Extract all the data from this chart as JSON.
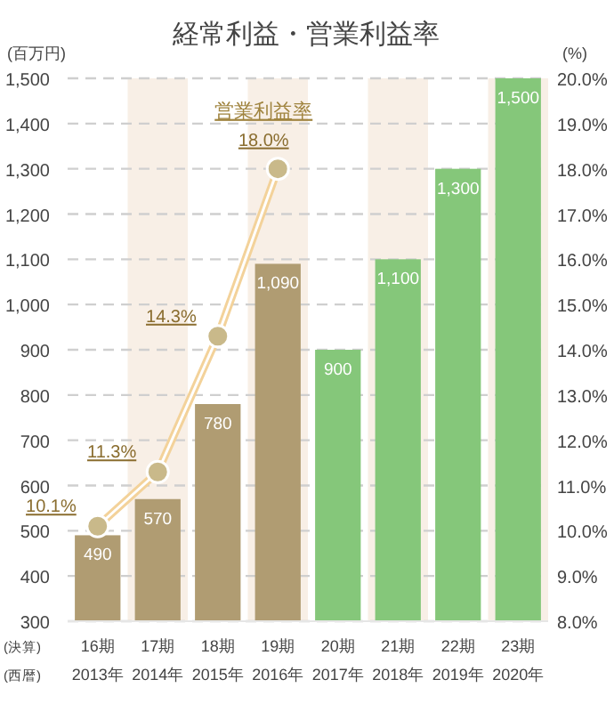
{
  "chart_data": {
    "type": "bar",
    "title": "経常利益・営業利益率",
    "ylabel": "(百万円)",
    "y2label": "(%)",
    "categories": [
      "16期\n2013年",
      "17期\n2014年",
      "18期\n2015年",
      "19期\n2016年",
      "20期\n2017年",
      "21期\n2018年",
      "22期\n2019年",
      "23期\n2020年"
    ],
    "annotations": [
      "(決算)",
      "(西暦)"
    ],
    "series": [
      {
        "colors": [
          "#b09c72",
          "#b09c72",
          "#b09c72",
          "#b09c72",
          "#85c77a",
          "#85c77a",
          "#85c77a",
          "#85c77a"
        ],
        "values": [
          490,
          570,
          780,
          1090,
          900,
          1100,
          1300,
          1500
        ],
        "value_labels": [
          "490",
          "570",
          "780",
          "1,090",
          "900",
          "1,100",
          "1,300",
          "1,500"
        ]
      },
      {
        "type": "line",
        "name": "営業利益率",
        "axis": "y2",
        "color": "#f3d29a",
        "marker": "circle",
        "values": [
          10.1,
          11.3,
          14.3,
          18.0,
          null,
          null,
          null,
          null
        ],
        "value_labels": [
          "10.1%",
          "11.3%",
          "14.3%",
          "18.0%",
          null,
          null,
          null,
          null
        ]
      }
    ],
    "ylim": [
      300,
      1500
    ],
    "yticks": [
      300,
      400,
      500,
      600,
      700,
      800,
      900,
      {
        "value": 1000,
        "label": "1,000"
      },
      {
        "value": 1100,
        "label": "1,100"
      },
      {
        "value": 1200,
        "label": "1,200"
      },
      {
        "value": 1300,
        "label": "1,300"
      },
      {
        "value": 1400,
        "label": "1,400"
      },
      {
        "value": 1500,
        "label": "1,500"
      }
    ],
    "y2lim": [
      8,
      20
    ],
    "y2ticks": [
      {
        "value": 8,
        "label": "8.0%"
      },
      {
        "value": 9,
        "label": "9.0%"
      },
      {
        "value": 10,
        "label": "10.0%"
      },
      {
        "value": 11,
        "label": "11.0%"
      },
      {
        "value": 12,
        "label": "12.0%"
      },
      {
        "value": 13,
        "label": "13.0%"
      },
      {
        "value": 14,
        "label": "14.0%"
      },
      {
        "value": 15,
        "label": "15.0%"
      },
      {
        "value": 16,
        "label": "16.0%"
      },
      {
        "value": 17,
        "label": "17.0%"
      },
      {
        "value": 18,
        "label": "18.0%"
      },
      {
        "value": 19,
        "label": "19.0%"
      },
      {
        "value": 20,
        "label": "20.0%"
      }
    ],
    "grid": "y",
    "bands": [
      {
        "axis": "x",
        "from": "17期\n2014年",
        "to": "17期\n2014年",
        "color": "#f8efe6"
      },
      {
        "axis": "x",
        "from": "19期\n2016年",
        "to": "19期\n2016年",
        "color": "#f8efe6"
      },
      {
        "axis": "x",
        "from": "21期\n2018年",
        "to": "21期\n2018年",
        "color": "#f8efe6"
      },
      {
        "axis": "x",
        "from": "23期\n2020年",
        "to": "23期\n2020年",
        "color": "#f8efe6"
      }
    ]
  }
}
